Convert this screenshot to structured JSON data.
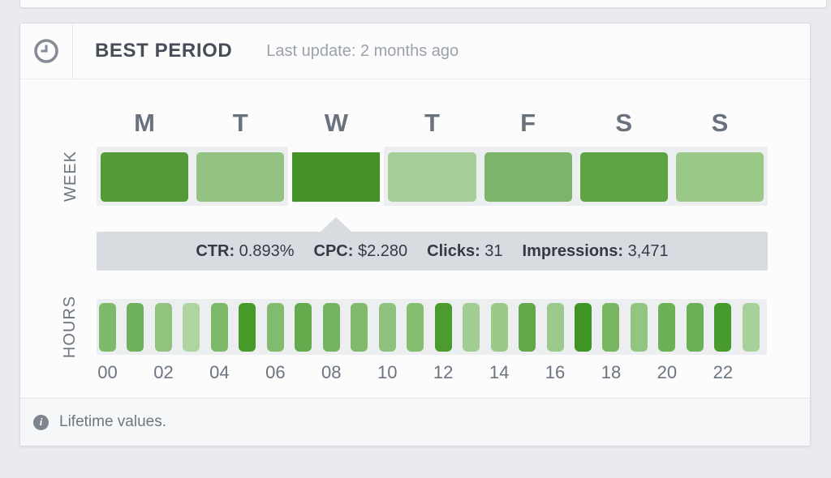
{
  "card": {
    "header": {
      "icon": "clock-icon",
      "title": "BEST PERIOD",
      "last_update": "Last update: 2 months ago"
    },
    "week": {
      "axis_label": "WEEK",
      "days": [
        {
          "key": "mon",
          "label": "M",
          "color": "#529b36",
          "selected": false
        },
        {
          "key": "tue",
          "label": "T",
          "color": "#93c383",
          "selected": false
        },
        {
          "key": "wed",
          "label": "W",
          "color": "#459326",
          "selected": true
        },
        {
          "key": "thu",
          "label": "T",
          "color": "#a7ce98",
          "selected": false
        },
        {
          "key": "fri",
          "label": "F",
          "color": "#7cb569",
          "selected": false
        },
        {
          "key": "sat",
          "label": "S",
          "color": "#5ca444",
          "selected": false
        },
        {
          "key": "sun",
          "label": "S",
          "color": "#99c889",
          "selected": false
        }
      ]
    },
    "stats_tooltip": {
      "attached_to_day": "wed",
      "stats": [
        {
          "label": "CTR:",
          "value": "0.893%"
        },
        {
          "label": "CPC:",
          "value": "$2.280"
        },
        {
          "label": "Clicks:",
          "value": "31"
        },
        {
          "label": "Impressions:",
          "value": "3,471"
        }
      ]
    },
    "hours": {
      "axis_label": "HOURS",
      "bars": [
        {
          "hour": "00",
          "color": "#7cb968",
          "label": "00"
        },
        {
          "hour": "01",
          "color": "#6fb05a",
          "label": ""
        },
        {
          "hour": "02",
          "color": "#8fc37e",
          "label": "02"
        },
        {
          "hour": "03",
          "color": "#aed4a0",
          "label": ""
        },
        {
          "hour": "04",
          "color": "#7cb968",
          "label": "04"
        },
        {
          "hour": "05",
          "color": "#469b2b",
          "label": ""
        },
        {
          "hour": "06",
          "color": "#82bb6e",
          "label": "06"
        },
        {
          "hour": "07",
          "color": "#65ab4e",
          "label": ""
        },
        {
          "hour": "08",
          "color": "#74b460",
          "label": "08"
        },
        {
          "hour": "09",
          "color": "#7fba6b",
          "label": ""
        },
        {
          "hour": "10",
          "color": "#8ec17d",
          "label": "10"
        },
        {
          "hour": "11",
          "color": "#85bd71",
          "label": ""
        },
        {
          "hour": "12",
          "color": "#4a9c2e",
          "label": "12"
        },
        {
          "hour": "13",
          "color": "#a3cd94",
          "label": ""
        },
        {
          "hour": "14",
          "color": "#9aca8a",
          "label": "14"
        },
        {
          "hour": "15",
          "color": "#61a948",
          "label": ""
        },
        {
          "hour": "16",
          "color": "#9cca8d",
          "label": "16"
        },
        {
          "hour": "17",
          "color": "#3e9523",
          "label": ""
        },
        {
          "hour": "18",
          "color": "#77b561",
          "label": "18"
        },
        {
          "hour": "19",
          "color": "#92c482",
          "label": ""
        },
        {
          "hour": "20",
          "color": "#6cb156",
          "label": "20"
        },
        {
          "hour": "21",
          "color": "#6ab055",
          "label": ""
        },
        {
          "hour": "22",
          "color": "#479b2c",
          "label": "22"
        },
        {
          "hour": "23",
          "color": "#a8d099",
          "label": ""
        }
      ]
    },
    "footer": {
      "icon": "info-icon",
      "info_symbol": "i",
      "text": "Lifetime values."
    }
  },
  "colors": {
    "page_bg": "#e9ebee",
    "card_bg": "#fcfcfd",
    "strip_bg": "#eceef0",
    "tooltip_bg": "#d8dbe0",
    "accent_dark_green": "#459326",
    "accent_light_green": "#a8d099"
  }
}
